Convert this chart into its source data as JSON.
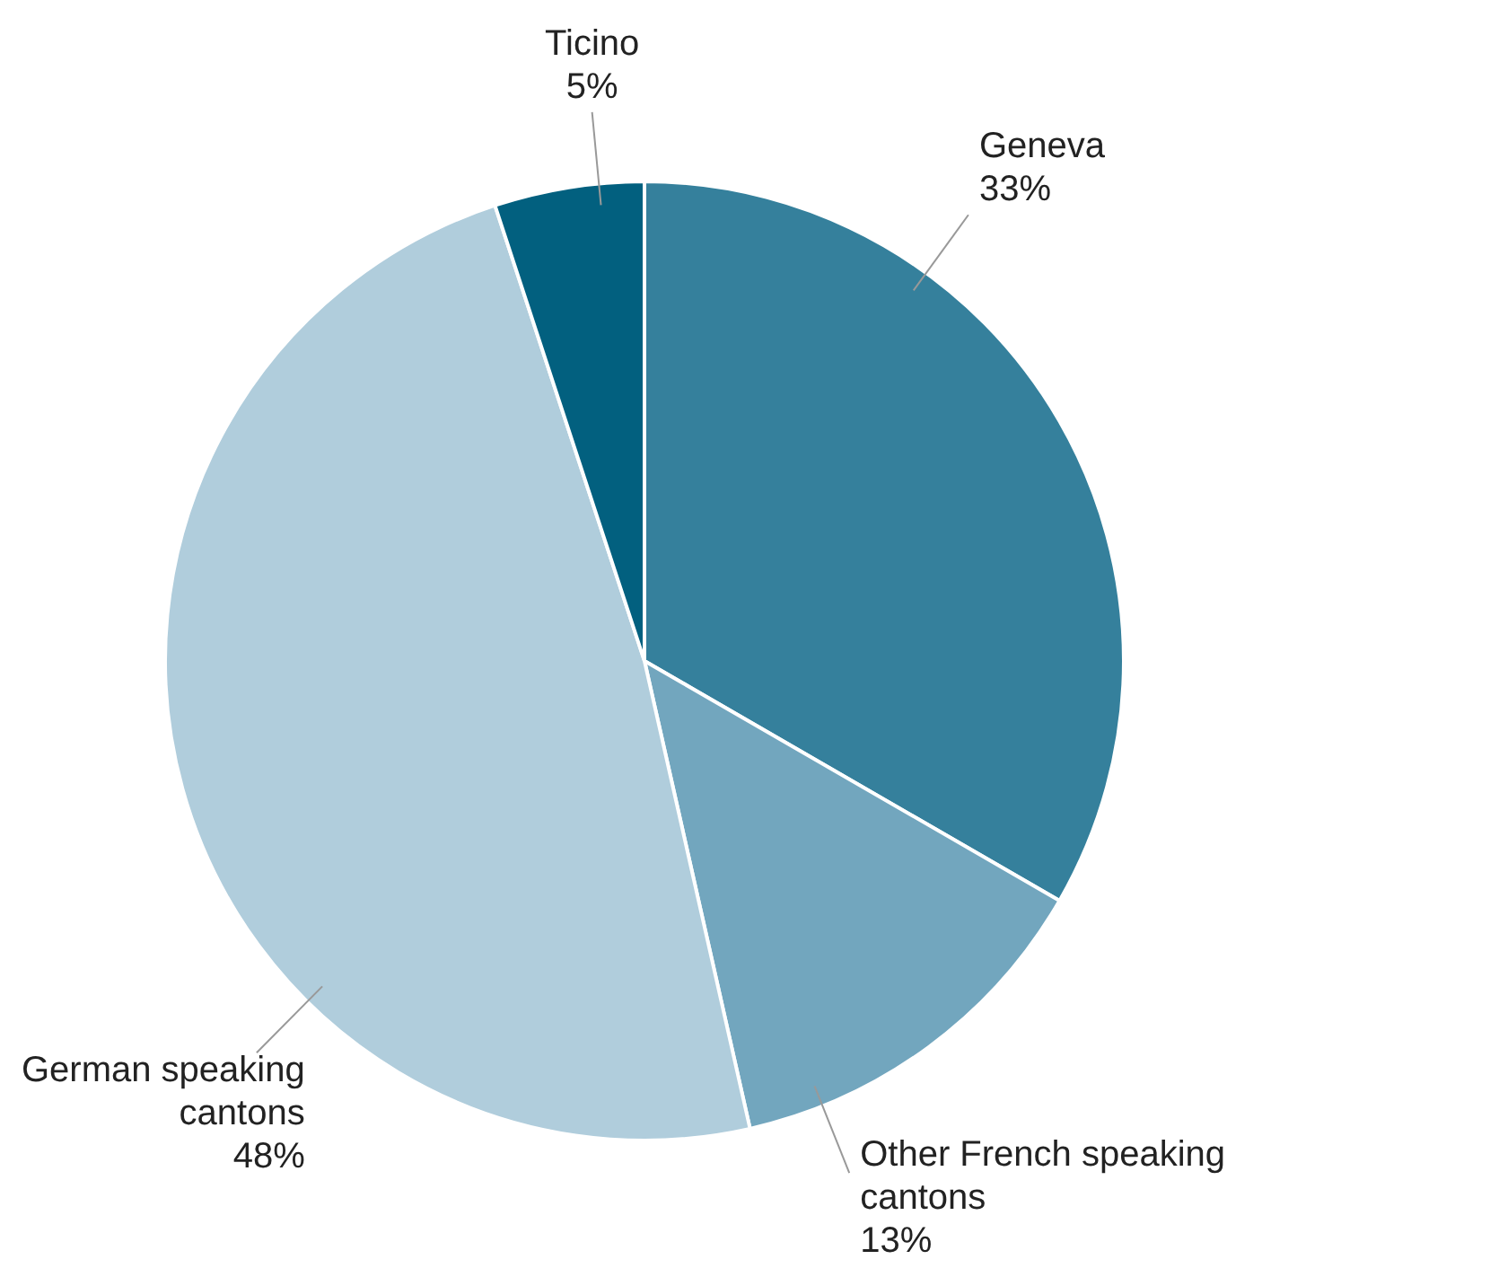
{
  "chart_data": {
    "type": "pie",
    "categories": [
      "Geneva",
      "Other French speaking cantons",
      "German speaking cantons",
      "Ticino"
    ],
    "values": [
      33,
      13,
      48,
      5
    ],
    "colors": [
      "#35809c",
      "#72a6be",
      "#b0cddc",
      "#02607f"
    ],
    "value_labels": [
      "33%",
      "13%",
      "48%",
      "5%"
    ],
    "legend": false
  }
}
